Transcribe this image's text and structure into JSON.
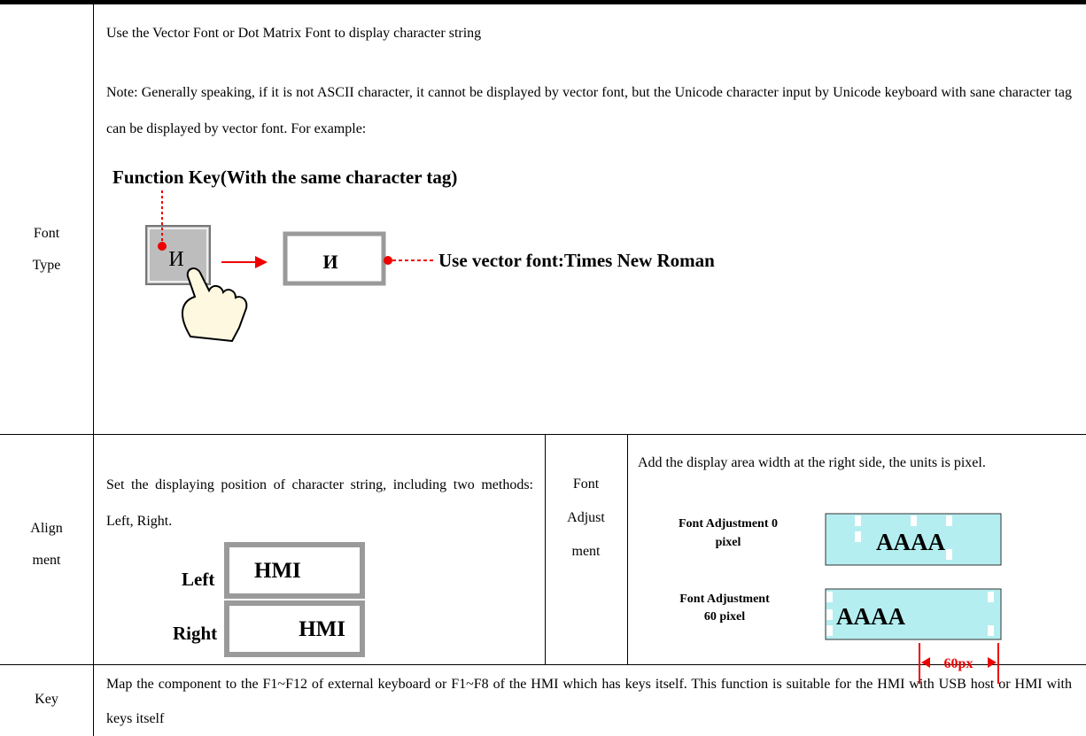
{
  "table": {
    "rows": [
      {
        "label": [
          "Font",
          "Type"
        ],
        "paragraphs": [
          "Use the Vector Font or Dot Matrix Font to display character string",
          "Note: Generally speaking, if it is not ASCII character, it cannot be displayed by vector font, but the Unicode character input by Unicode keyboard with sane character tag can be displayed by vector font. For example:"
        ],
        "figure": {
          "title": "Function Key(With the same character tag)",
          "key_char": "И",
          "display_char": "И",
          "caption": "Use vector font:Times New Roman"
        }
      },
      {
        "label": [
          "Align",
          "ment"
        ],
        "paragraphs": [
          "Set the displaying position of character string, including two methods: Left, Right."
        ],
        "figure": {
          "left_label": "Left",
          "left_text": "HMI",
          "right_label": "Right",
          "right_text": "HMI"
        },
        "label2": [
          "Font",
          "Adjust",
          "ment"
        ],
        "paragraphs2": [
          "Add the display area width at the right side, the units is pixel."
        ],
        "figure2": {
          "label_a": [
            "Font Adjustment 0",
            "pixel"
          ],
          "text_a": "AAAA",
          "label_b": [
            "Font Adjustment",
            "60 pixel"
          ],
          "text_b": "AAAA",
          "dimension": "60px"
        }
      },
      {
        "label": [
          "Key"
        ],
        "paragraphs": [
          "Map the component to the F1~F12 of external keyboard or F1~F8 of the HMI which has keys itself. This function is suitable for the HMI with USB host or HMI with keys itself"
        ]
      }
    ]
  }
}
